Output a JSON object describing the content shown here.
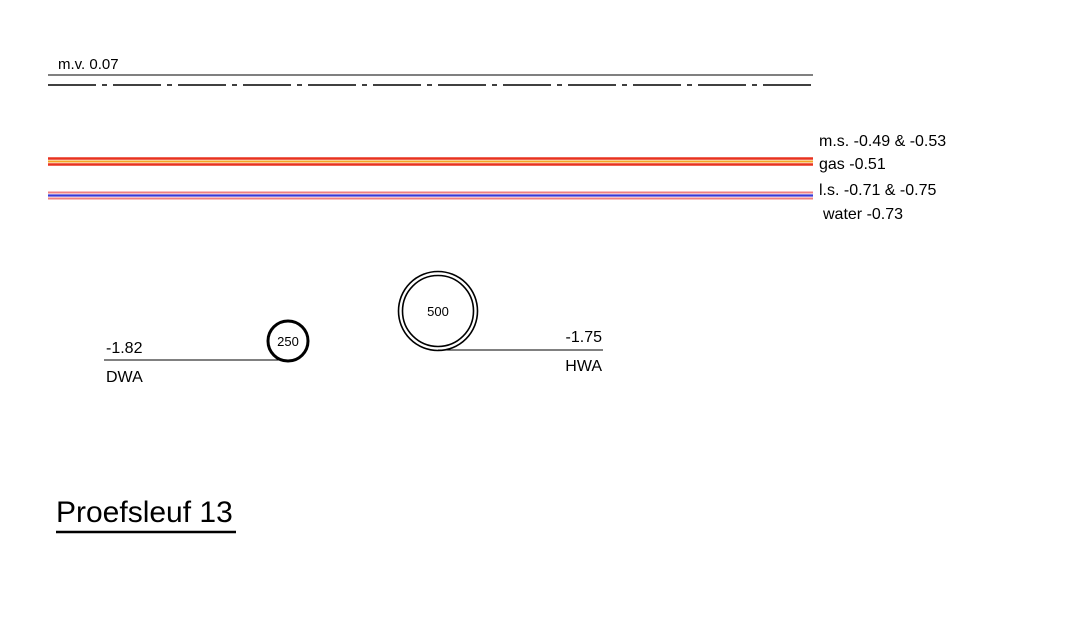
{
  "surface": {
    "label": "m.v. 0.07"
  },
  "cables": {
    "ms_label": "m.s. -0.49 & -0.53",
    "gas_label": "gas -0.51",
    "ls_label": "l.s. -0.71 & -0.75",
    "water_label": "water -0.73",
    "colors": {
      "ms": "#e8321e",
      "gas": "#f5a623",
      "ls": "#f08080",
      "water": "#3a3ad6"
    }
  },
  "pipes": {
    "dwa": {
      "diameter": "250",
      "depth": "-1.82",
      "name": "DWA"
    },
    "hwa": {
      "diameter": "500",
      "depth": "-1.75",
      "name": "HWA"
    }
  },
  "title": "Proefsleuf 13"
}
